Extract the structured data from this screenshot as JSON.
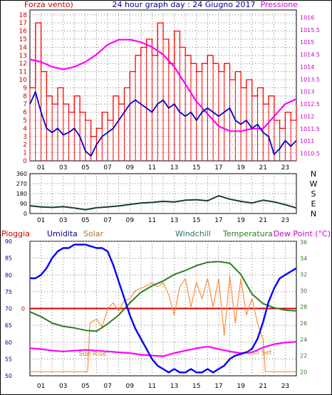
{
  "header": {
    "title": "24 hour graph day : 24 Giugno 2017",
    "left_label": "Forza vento)",
    "right_label": "Pressione"
  },
  "bottom_labels": {
    "rain": "Pioggia",
    "humidity": "Umidita",
    "solar": "Solar",
    "windchill": "Windchill",
    "temperature": "Temperatura",
    "dewpoint": "Dew Point (°C)",
    "sunrise": "Sun Rise",
    "sunset": "Sun Set"
  },
  "colors": {
    "wind_gust": "#ff0000",
    "wind_avg": "#0000cc",
    "pressure": "#ff00ff",
    "direction": "#1a3a3a",
    "humidity": "#0000ff",
    "solar": "#ff8c3c",
    "temperature": "#2e7d1e",
    "dewpoint": "#ff00ff",
    "rain": "#cc0000",
    "axis_left": "#cc0000",
    "axis_right": "#cc00cc",
    "axis_blue": "#000099",
    "axis_green": "#2e7d1e"
  },
  "chart_data": [
    {
      "type": "line",
      "name": "wind-pressure",
      "x_ticks": [
        "01",
        "03",
        "05",
        "07",
        "09",
        "11",
        "13",
        "15",
        "17",
        "19",
        "21",
        "23"
      ],
      "y_left_ticks": [
        "0",
        "1",
        "2",
        "3",
        "4",
        "5",
        "6",
        "7",
        "8",
        "9",
        "10",
        "11",
        "12",
        "13",
        "14",
        "15",
        "16",
        "17",
        "18"
      ],
      "y_right_ticks": [
        "1010.5",
        "1011",
        "1011.5",
        "1012",
        "1012.5",
        "1013",
        "1013.5",
        "1014",
        "1014.5",
        "1015",
        "1015.5",
        "1016"
      ],
      "ylim_left": [
        0,
        18.6
      ],
      "ylim_right": [
        1010.2,
        1016.3
      ],
      "xlim": [
        0,
        24
      ],
      "series": [
        {
          "key": "gust",
          "x": [
            0,
            0.5,
            1,
            1.5,
            2,
            2.5,
            3,
            3.5,
            4,
            4.5,
            5,
            5.5,
            6,
            6.5,
            7,
            7.5,
            8,
            8.5,
            9,
            9.5,
            10,
            10.5,
            11,
            11.5,
            12,
            12.5,
            13,
            13.5,
            14,
            14.5,
            15,
            15.5,
            16,
            16.5,
            17,
            17.5,
            18,
            18.5,
            19,
            19.5,
            20,
            20.5,
            21,
            21.5,
            22,
            22.5,
            23,
            23.5,
            24
          ],
          "values": [
            9,
            17,
            11,
            8,
            7,
            9,
            7,
            6,
            8,
            6,
            5,
            3,
            4,
            6,
            5,
            8,
            7,
            9,
            11,
            13,
            14,
            15,
            13,
            17,
            15,
            12,
            16,
            14,
            13,
            12,
            11,
            12,
            13,
            12,
            11,
            12,
            10,
            11,
            9,
            10,
            8,
            9,
            7,
            8,
            5,
            4,
            6,
            5,
            7
          ]
        },
        {
          "key": "avg",
          "x": [
            0,
            0.5,
            1,
            1.5,
            2,
            2.5,
            3,
            3.5,
            4,
            4.5,
            5,
            5.5,
            6,
            6.5,
            7,
            7.5,
            8,
            8.5,
            9,
            9.5,
            10,
            10.5,
            11,
            11.5,
            12,
            12.5,
            13,
            13.5,
            14,
            14.5,
            15,
            15.5,
            16,
            16.5,
            17,
            17.5,
            18,
            18.5,
            19,
            19.5,
            20,
            20.5,
            21,
            21.5,
            22,
            22.5,
            23,
            23.5,
            24
          ],
          "values": [
            7,
            8.5,
            6,
            4,
            3.5,
            4,
            3.2,
            3.5,
            4,
            3,
            1.2,
            0.6,
            2,
            3,
            3.5,
            4,
            5,
            6,
            7,
            7.5,
            7,
            6.5,
            6,
            7,
            7.5,
            6.5,
            7,
            6,
            5.5,
            6,
            5,
            6,
            6.5,
            6,
            5.5,
            6,
            6.5,
            5,
            4.5,
            5,
            4,
            4.5,
            3.5,
            3,
            0.8,
            1.5,
            2.5,
            1.8,
            2.5
          ]
        },
        {
          "key": "pressure",
          "x": [
            0,
            1,
            2,
            3,
            4,
            5,
            6,
            7,
            8,
            9,
            10,
            11,
            12,
            13,
            14,
            15,
            16,
            17,
            18,
            19,
            20,
            21,
            22,
            23,
            24
          ],
          "values": [
            1014.3,
            1014.2,
            1014.0,
            1013.9,
            1014.0,
            1014.2,
            1014.5,
            1014.9,
            1015.1,
            1015.1,
            1015.0,
            1014.8,
            1014.5,
            1014.0,
            1013.3,
            1012.6,
            1012.1,
            1011.6,
            1011.4,
            1011.4,
            1011.5,
            1011.5,
            1012.0,
            1012.5,
            1012.7
          ]
        }
      ]
    },
    {
      "type": "line",
      "name": "wind-direction",
      "x_ticks": [
        "01",
        "03",
        "05",
        "07",
        "09",
        "11",
        "13",
        "15",
        "17",
        "19",
        "21",
        "23"
      ],
      "y_left_ticks": [
        "0",
        "90",
        "180",
        "270",
        "360"
      ],
      "y_right_ticks": [
        "N",
        "E",
        "S",
        "W",
        "N"
      ],
      "ylim": [
        0,
        360
      ],
      "xlim": [
        0,
        24
      ],
      "series": [
        {
          "key": "direction",
          "x": [
            0,
            1,
            2,
            3,
            4,
            5,
            6,
            7,
            8,
            9,
            10,
            11,
            12,
            13,
            14,
            15,
            16,
            17,
            18,
            19,
            20,
            21,
            22,
            23,
            24
          ],
          "values": [
            70,
            60,
            55,
            62,
            50,
            35,
            52,
            60,
            68,
            82,
            95,
            100,
            110,
            105,
            120,
            125,
            115,
            160,
            130,
            110,
            95,
            120,
            105,
            80,
            50
          ]
        }
      ]
    },
    {
      "type": "line",
      "name": "humidity-temperature",
      "x_ticks": [
        "01",
        "03",
        "05",
        "07",
        "09",
        "11",
        "13",
        "15",
        "17",
        "19",
        "21",
        "23"
      ],
      "y_left_ticks": [
        "50",
        "55",
        "60",
        "65",
        "70",
        "75",
        "80",
        "85",
        "90"
      ],
      "y_right_ticks": [
        "20",
        "22",
        "24",
        "26",
        "28",
        "30",
        "32",
        "34",
        "36"
      ],
      "rain_marker": "0",
      "ylim_left": [
        50,
        90
      ],
      "ylim_right": [
        19.5,
        36.1
      ],
      "xlim": [
        0,
        24
      ],
      "series": [
        {
          "key": "humidity",
          "x": [
            0,
            0.5,
            1,
            1.5,
            2,
            2.5,
            3,
            3.5,
            4,
            4.5,
            5,
            5.5,
            6,
            6.5,
            7,
            7.5,
            8,
            8.5,
            9,
            9.5,
            10,
            10.5,
            11,
            11.5,
            12,
            12.5,
            13,
            13.5,
            14,
            14.5,
            15,
            15.5,
            16,
            16.5,
            17,
            17.5,
            18,
            18.5,
            19,
            19.5,
            20,
            20.5,
            21,
            21.5,
            22,
            22.5,
            23,
            23.5,
            24
          ],
          "values": [
            79,
            79,
            80,
            82,
            85,
            87,
            88,
            88,
            89,
            89,
            89,
            88.5,
            88,
            88,
            87,
            83,
            78,
            73,
            68,
            64,
            61,
            58,
            55,
            53,
            52,
            51,
            52,
            51,
            51,
            52,
            51,
            51,
            52,
            51,
            52,
            53,
            55,
            56,
            56.5,
            57,
            58,
            61,
            66,
            72,
            76,
            79,
            80,
            81,
            82
          ]
        },
        {
          "key": "temperature",
          "x": [
            0,
            1,
            2,
            3,
            4,
            5,
            6,
            7,
            8,
            9,
            10,
            11,
            12,
            13,
            14,
            15,
            16,
            17,
            18,
            19,
            20,
            21,
            22,
            23,
            24
          ],
          "values": [
            27.4,
            26.8,
            26.0,
            25.6,
            25.4,
            25.1,
            25.0,
            25.9,
            27.0,
            28.5,
            29.8,
            30.6,
            31.2,
            32.0,
            32.5,
            33.1,
            33.5,
            33.6,
            33.4,
            32.0,
            29.6,
            28.4,
            27.9,
            27.6,
            27.5
          ]
        },
        {
          "key": "dewpoint",
          "x": [
            0,
            1,
            2,
            3,
            4,
            5,
            6,
            7,
            8,
            9,
            10,
            11,
            12,
            13,
            14,
            15,
            16,
            17,
            18,
            19,
            20,
            21,
            22,
            23,
            24
          ],
          "values": [
            22.9,
            22.8,
            22.6,
            22.5,
            22.6,
            22.7,
            22.6,
            22.5,
            22.4,
            22.3,
            22.1,
            22.0,
            21.9,
            22.3,
            22.6,
            22.9,
            23.1,
            22.8,
            22.5,
            22.3,
            22.4,
            23.0,
            23.4,
            23.6,
            23.7
          ]
        },
        {
          "key": "solar",
          "x": [
            0,
            5.2,
            5.4,
            6,
            6.5,
            7,
            7.5,
            8,
            8.5,
            9,
            9.5,
            10,
            10.5,
            11,
            11.5,
            12,
            12.5,
            13,
            13.5,
            14,
            14.5,
            15,
            15.5,
            16,
            16.5,
            17,
            17.5,
            18,
            18.5,
            19,
            19.5,
            20,
            20.5,
            21,
            21.2,
            22,
            24
          ],
          "values": [
            20,
            20,
            26,
            26.5,
            25.5,
            27.8,
            28.5,
            27.5,
            28.8,
            29,
            30,
            30.3,
            30.6,
            31,
            30.5,
            31,
            29.5,
            27,
            30.5,
            31.5,
            28,
            31,
            29,
            31.5,
            28,
            31.5,
            24.5,
            31.8,
            26,
            31.5,
            27,
            29,
            26,
            24,
            20,
            20,
            20
          ]
        }
      ]
    }
  ]
}
